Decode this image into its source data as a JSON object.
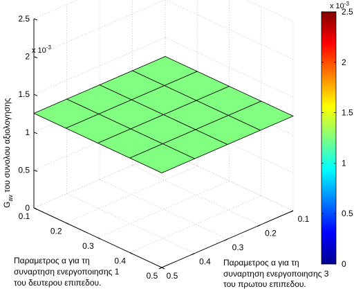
{
  "chart_data": {
    "type": "surface",
    "title": "",
    "xlabel": [
      "Παραμετρος α για τη",
      "συναρτηση ενεργοποιησης 1",
      "του δευτερου επιπεδου."
    ],
    "ylabel": [
      "Παραμετρος α για τη",
      "συναρτηση ενεργοποιησης 3",
      "του πρωτου επιπεδου."
    ],
    "zlabel_main": "G",
    "zlabel_sub": "av",
    "zlabel_rest": " του συνολου αξιολογησης",
    "z_multiplier": "x 10",
    "z_multiplier_exp": "-3",
    "x_ticks": [
      "0.1",
      "0.2",
      "0.3",
      "0.4",
      "0.5"
    ],
    "y_ticks": [
      "0.1",
      "0.2",
      "0.3",
      "0.4",
      "0.5"
    ],
    "z_ticks": [
      "0",
      "0.5",
      "1",
      "1.5",
      "2",
      "2.5"
    ],
    "x": [
      0.1,
      0.2,
      0.3,
      0.4,
      0.5
    ],
    "y": [
      0.1,
      0.2,
      0.3,
      0.4,
      0.5
    ],
    "xlim": [
      0.1,
      0.5
    ],
    "ylim": [
      0.1,
      0.5
    ],
    "zlim": [
      0,
      0.0025
    ],
    "z": [
      [
        0.00125,
        0.00125,
        0.00125,
        0.00125,
        0.00125
      ],
      [
        0.00125,
        0.00125,
        0.00125,
        0.00125,
        0.00125
      ],
      [
        0.00125,
        0.00125,
        0.00125,
        0.00125,
        0.00125
      ],
      [
        0.00125,
        0.00125,
        0.00125,
        0.00125,
        0.00125
      ],
      [
        0.00125,
        0.00125,
        0.00125,
        0.00125,
        0.00125
      ]
    ],
    "surface_color": "#80ff80",
    "grid": true,
    "colorbar": {
      "colormap": "jet",
      "ticks": [
        "0",
        "0.5",
        "1",
        "1.5",
        "2",
        "2.5"
      ],
      "multiplier": "x 10",
      "multiplier_exp": "-3",
      "placement": "right"
    }
  }
}
